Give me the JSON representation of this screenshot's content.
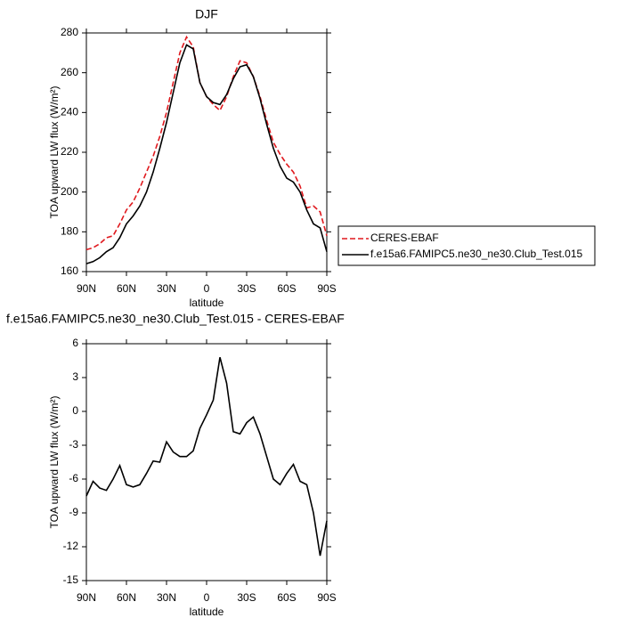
{
  "chart_data": [
    {
      "type": "line",
      "title": "DJF",
      "xlabel": "latitude",
      "ylabel": "TOA upward LW flux (W/m²)",
      "x": [
        90,
        85,
        80,
        75,
        70,
        65,
        60,
        55,
        50,
        45,
        40,
        35,
        30,
        25,
        20,
        15,
        10,
        5,
        0,
        -5,
        -10,
        -15,
        -20,
        -25,
        -30,
        -35,
        -40,
        -45,
        -50,
        -55,
        -60,
        -65,
        -70,
        -75,
        -80,
        -85,
        -90
      ],
      "series": [
        {
          "name": "CERES-EBAF",
          "color": "#e0191e",
          "dashed": true,
          "values": [
            171,
            172,
            174,
            177,
            178,
            184,
            191,
            195,
            202,
            210,
            218,
            228,
            240,
            255,
            270,
            278,
            273,
            255,
            248,
            244,
            241,
            248,
            258,
            266,
            265,
            258,
            248,
            236,
            225,
            219,
            214,
            210,
            203,
            192,
            193,
            190,
            178
          ]
        },
        {
          "name": "f.e15a6.FAMIPC5.ne30_ne30.Club_Test.015",
          "color": "#000000",
          "dashed": false,
          "values": [
            164,
            165,
            167,
            170,
            172,
            177,
            184,
            188,
            193,
            200,
            210,
            222,
            235,
            250,
            265,
            274,
            272,
            255,
            248,
            245,
            244,
            249,
            257,
            263,
            264,
            258,
            247,
            234,
            222,
            213,
            207,
            205,
            200,
            191,
            184,
            182,
            170
          ]
        }
      ],
      "xlim": [
        90,
        -90
      ],
      "xticks": [
        {
          "value": 90,
          "label": "90N"
        },
        {
          "value": 60,
          "label": "60N"
        },
        {
          "value": 30,
          "label": "30N"
        },
        0,
        {
          "value": -30,
          "label": "30S"
        },
        {
          "value": -60,
          "label": "60S"
        },
        {
          "value": -90,
          "label": "90S"
        }
      ],
      "ylim": [
        160,
        280
      ],
      "yticks": [
        160,
        180,
        200,
        220,
        240,
        260,
        280
      ],
      "legend": true
    },
    {
      "type": "line",
      "title": "f.e15a6.FAMIPC5.ne30_ne30.Club_Test.015 - CERES-EBAF",
      "xlabel": "latitude",
      "ylabel": "TOA upward LW flux (W/m²)",
      "x": [
        90,
        85,
        80,
        75,
        70,
        65,
        60,
        55,
        50,
        45,
        40,
        35,
        30,
        25,
        20,
        15,
        10,
        5,
        0,
        -5,
        -10,
        -15,
        -20,
        -25,
        -30,
        -35,
        -40,
        -45,
        -50,
        -55,
        -60,
        -65,
        -70,
        -75,
        -80,
        -85,
        -90
      ],
      "values": [
        -7.5,
        -6.2,
        -6.8,
        -7,
        -6,
        -4.8,
        -6.5,
        -6.7,
        -6.5,
        -5.5,
        -4.4,
        -4.5,
        -2.7,
        -3.6,
        -4,
        -4,
        -3.5,
        -1.5,
        -0.3,
        1,
        4.8,
        2.5,
        -1.8,
        -2,
        -1,
        -0.5,
        -2,
        -4,
        -6,
        -6.5,
        -5.5,
        -4.7,
        -6.2,
        -6.5,
        -9,
        -12.8,
        -9.7
      ],
      "color": "#000000",
      "xlim": [
        90,
        -90
      ],
      "xticks": [
        {
          "value": 90,
          "label": "90N"
        },
        {
          "value": 60,
          "label": "60N"
        },
        {
          "value": 30,
          "label": "30N"
        },
        0,
        {
          "value": -30,
          "label": "30S"
        },
        {
          "value": -60,
          "label": "60S"
        },
        {
          "value": -90,
          "label": "90S"
        }
      ],
      "ylim": [
        -15,
        6
      ],
      "yticks": [
        -15,
        -12,
        -9,
        -6,
        -3,
        0,
        3,
        6
      ],
      "legend": false
    }
  ]
}
